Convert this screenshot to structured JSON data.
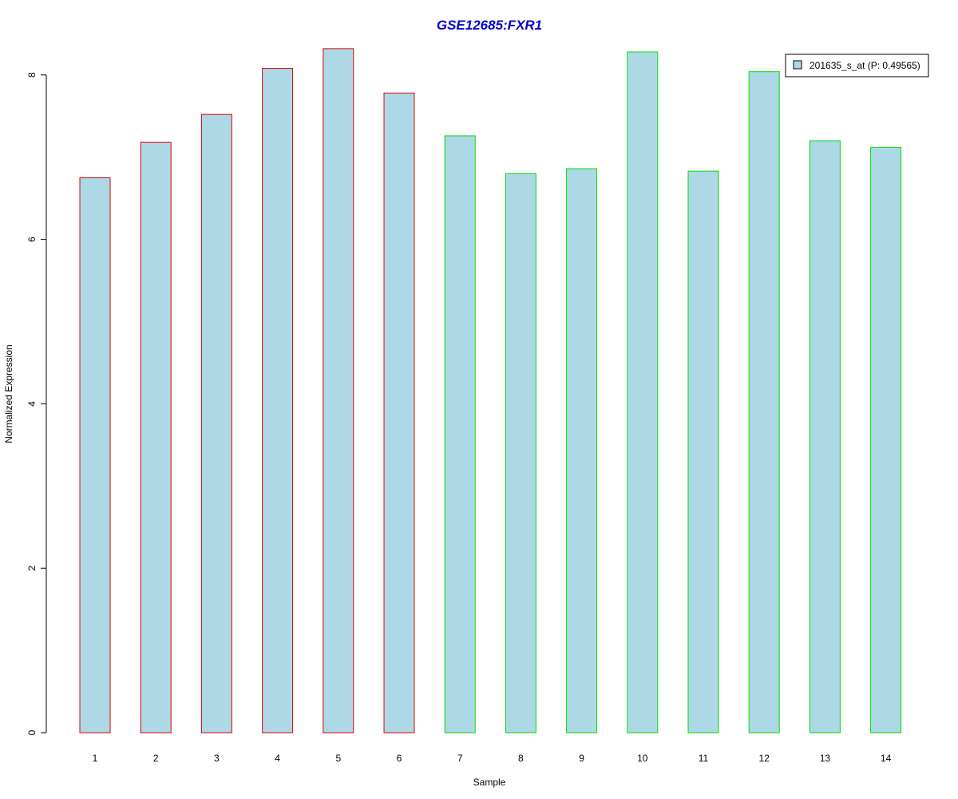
{
  "chart_data": {
    "type": "bar",
    "title": "GSE12685:FXR1",
    "title_color": "#0000cc",
    "xlabel": "Sample",
    "ylabel": "Normalized Expression",
    "categories": [
      "1",
      "2",
      "3",
      "4",
      "5",
      "6",
      "7",
      "8",
      "9",
      "10",
      "11",
      "12",
      "13",
      "14"
    ],
    "series": [
      {
        "name": "201635_s_at (P: 0.49565)",
        "values": [
          6.75,
          7.18,
          7.52,
          8.08,
          8.32,
          7.78,
          7.26,
          6.8,
          6.86,
          8.28,
          6.83,
          8.04,
          7.2,
          7.12
        ]
      }
    ],
    "bar_fill": "#add8e6",
    "bar_border_colors": [
      "#e00000",
      "#e00000",
      "#e00000",
      "#e00000",
      "#e00000",
      "#e00000",
      "#00dd00",
      "#00dd00",
      "#00dd00",
      "#00dd00",
      "#00dd00",
      "#00dd00",
      "#00dd00",
      "#00dd00"
    ],
    "yticks": [
      0,
      2,
      4,
      6,
      8
    ],
    "ylim": [
      0,
      8.0
    ],
    "grid": false,
    "legend_position": "top-right"
  }
}
